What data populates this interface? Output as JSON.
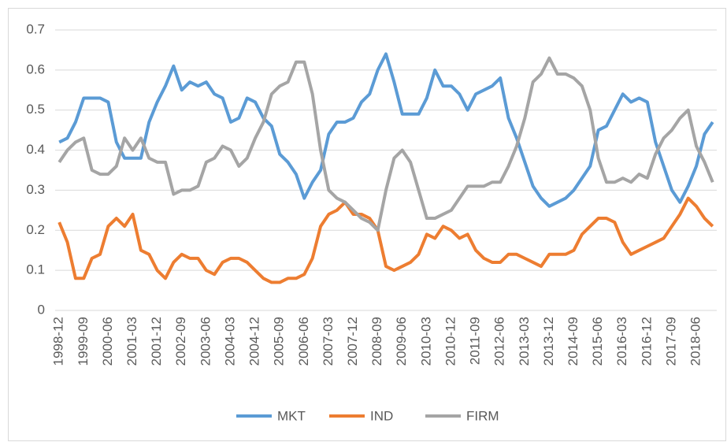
{
  "chart_data": {
    "type": "line",
    "categories": [
      "1998-12",
      null,
      null,
      "1999-09",
      null,
      null,
      "2000-06",
      null,
      null,
      "2001-03",
      null,
      null,
      "2001-12",
      null,
      null,
      "2002-09",
      null,
      null,
      "2003-06",
      null,
      null,
      "2004-03",
      null,
      null,
      "2004-12",
      null,
      null,
      "2005-09",
      null,
      null,
      "2006-06",
      null,
      null,
      "2007-03",
      null,
      null,
      "2007-12",
      null,
      null,
      "2008-09",
      null,
      null,
      "2009-06",
      null,
      null,
      "2010-03",
      null,
      null,
      "2010-12",
      null,
      null,
      "2011-09",
      null,
      null,
      "2012-06",
      null,
      null,
      "2013-03",
      null,
      null,
      "2013-12",
      null,
      null,
      "2014-09",
      null,
      null,
      "2015-06",
      null,
      null,
      "2016-03",
      null,
      null,
      "2016-12",
      null,
      null,
      "2017-09",
      null,
      null,
      "2018-06",
      null,
      null
    ],
    "series": [
      {
        "name": "MKT",
        "color": "#5b9bd5",
        "values": [
          0.42,
          0.43,
          0.47,
          0.53,
          0.53,
          0.53,
          0.52,
          0.42,
          0.38,
          0.38,
          0.38,
          0.47,
          0.52,
          0.56,
          0.61,
          0.55,
          0.57,
          0.56,
          0.57,
          0.54,
          0.53,
          0.47,
          0.48,
          0.53,
          0.52,
          0.48,
          0.46,
          0.39,
          0.37,
          0.34,
          0.28,
          0.32,
          0.35,
          0.44,
          0.47,
          0.47,
          0.48,
          0.52,
          0.54,
          0.6,
          0.64,
          0.57,
          0.49,
          0.49,
          0.49,
          0.53,
          0.6,
          0.56,
          0.56,
          0.54,
          0.5,
          0.54,
          0.55,
          0.56,
          0.58,
          0.48,
          0.43,
          0.37,
          0.31,
          0.28,
          0.26,
          0.27,
          0.28,
          0.3,
          0.33,
          0.36,
          0.45,
          0.46,
          0.5,
          0.54,
          0.52,
          0.53,
          0.52,
          0.42,
          0.36,
          0.3,
          0.27,
          0.31,
          0.36,
          0.44,
          0.47
        ]
      },
      {
        "name": "IND",
        "color": "#ed7d31",
        "values": [
          0.22,
          0.17,
          0.08,
          0.08,
          0.13,
          0.14,
          0.21,
          0.23,
          0.21,
          0.24,
          0.15,
          0.14,
          0.1,
          0.08,
          0.12,
          0.14,
          0.13,
          0.13,
          0.1,
          0.09,
          0.12,
          0.13,
          0.13,
          0.12,
          0.1,
          0.08,
          0.07,
          0.07,
          0.08,
          0.08,
          0.09,
          0.13,
          0.21,
          0.24,
          0.25,
          0.27,
          0.24,
          0.24,
          0.23,
          0.2,
          0.11,
          0.1,
          0.11,
          0.12,
          0.14,
          0.19,
          0.18,
          0.21,
          0.2,
          0.18,
          0.19,
          0.15,
          0.13,
          0.12,
          0.12,
          0.14,
          0.14,
          0.13,
          0.12,
          0.11,
          0.14,
          0.14,
          0.14,
          0.15,
          0.19,
          0.21,
          0.23,
          0.23,
          0.22,
          0.17,
          0.14,
          0.15,
          0.16,
          0.17,
          0.18,
          0.21,
          0.24,
          0.28,
          0.26,
          0.23,
          0.21
        ]
      },
      {
        "name": "FIRM",
        "color": "#a5a5a5",
        "values": [
          0.37,
          0.4,
          0.42,
          0.43,
          0.35,
          0.34,
          0.34,
          0.36,
          0.43,
          0.4,
          0.43,
          0.38,
          0.37,
          0.37,
          0.29,
          0.3,
          0.3,
          0.31,
          0.37,
          0.38,
          0.41,
          0.4,
          0.36,
          0.38,
          0.43,
          0.47,
          0.54,
          0.56,
          0.57,
          0.62,
          0.62,
          0.54,
          0.4,
          0.3,
          0.28,
          0.27,
          0.25,
          0.23,
          0.22,
          0.2,
          0.3,
          0.38,
          0.4,
          0.37,
          0.3,
          0.23,
          0.23,
          0.24,
          0.25,
          0.28,
          0.31,
          0.31,
          0.31,
          0.32,
          0.32,
          0.36,
          0.41,
          0.48,
          0.57,
          0.59,
          0.63,
          0.59,
          0.59,
          0.58,
          0.56,
          0.5,
          0.38,
          0.32,
          0.32,
          0.33,
          0.32,
          0.34,
          0.33,
          0.39,
          0.43,
          0.45,
          0.48,
          0.5,
          0.41,
          0.37,
          0.32
        ]
      }
    ],
    "ylim": [
      0,
      0.7
    ],
    "yticks": [
      0,
      0.1,
      0.2,
      0.3,
      0.4,
      0.5,
      0.6,
      0.7
    ],
    "grid": true,
    "legend": "bottom"
  }
}
